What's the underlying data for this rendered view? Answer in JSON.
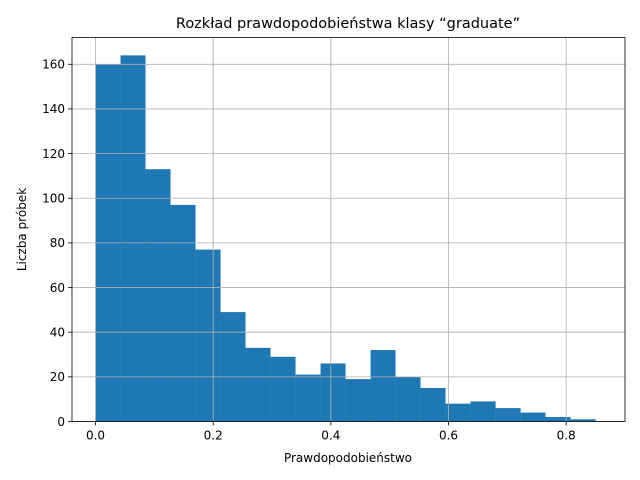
{
  "chart_data": {
    "type": "bar",
    "title": "Rozkład prawdopodobieństwa klasy “graduate”",
    "xlabel": "Prawdopodobieństwo",
    "ylabel": "Liczba próbek",
    "xlim": [
      -0.04,
      0.9
    ],
    "ylim": [
      0,
      172
    ],
    "x_ticks": [
      0.0,
      0.2,
      0.4,
      0.6,
      0.8
    ],
    "x_tick_labels": [
      "0.0",
      "0.2",
      "0.4",
      "0.6",
      "0.8"
    ],
    "y_ticks": [
      0,
      20,
      40,
      60,
      80,
      100,
      120,
      140,
      160
    ],
    "y_tick_labels": [
      "0",
      "20",
      "40",
      "60",
      "80",
      "100",
      "120",
      "140",
      "160"
    ],
    "grid": true,
    "color": "#1f77b4",
    "bin_edges": [
      0.0,
      0.0425,
      0.085,
      0.1275,
      0.17,
      0.2125,
      0.255,
      0.2975,
      0.34,
      0.3825,
      0.425,
      0.4675,
      0.51,
      0.5525,
      0.595,
      0.6375,
      0.68,
      0.7225,
      0.765,
      0.8075,
      0.85
    ],
    "values": [
      160,
      164,
      113,
      97,
      77,
      49,
      33,
      29,
      21,
      26,
      19,
      32,
      20,
      15,
      8,
      9,
      6,
      4,
      2,
      1
    ]
  }
}
